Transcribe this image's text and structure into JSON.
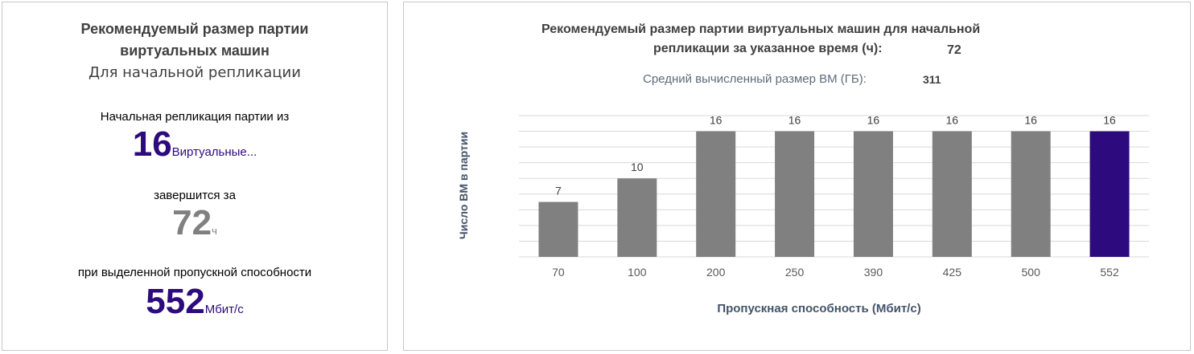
{
  "left": {
    "title_line1": "Рекомендуемый размер партии",
    "title_line2": "виртуальных машин",
    "subtitle": "Для начальной репликации",
    "batch_label": "Начальная репликация партии из",
    "vm_count": "16",
    "vm_unit": "Виртуальные...",
    "completes_label": "завершится за",
    "hours": "72",
    "hours_unit": "ч",
    "bandwidth_label": "при выделенной пропускной способности",
    "bandwidth": "552",
    "bandwidth_unit": "Мбит/с"
  },
  "right": {
    "title_line1": "Рекомендуемый размер партии виртуальных машин для начальной",
    "title_line2": "репликации за указанное время (ч):",
    "time_value": "72",
    "avg_label": "Средний вычисленный размер ВМ (ГБ):",
    "avg_value": "311"
  },
  "colors": {
    "bar": "#808080",
    "highlight": "#2d0a7d",
    "grid": "#d9d9d9"
  },
  "chart_data": {
    "type": "bar",
    "categories": [
      "70",
      "100",
      "200",
      "250",
      "390",
      "425",
      "500",
      "552"
    ],
    "values": [
      7,
      10,
      16,
      16,
      16,
      16,
      16,
      16
    ],
    "highlight_category": "552",
    "xlabel": "Пропускная способность (Мбит/с)",
    "ylabel": "Число ВМ в партии",
    "ylim": [
      0,
      18
    ],
    "grid": true,
    "data_labels": true
  }
}
